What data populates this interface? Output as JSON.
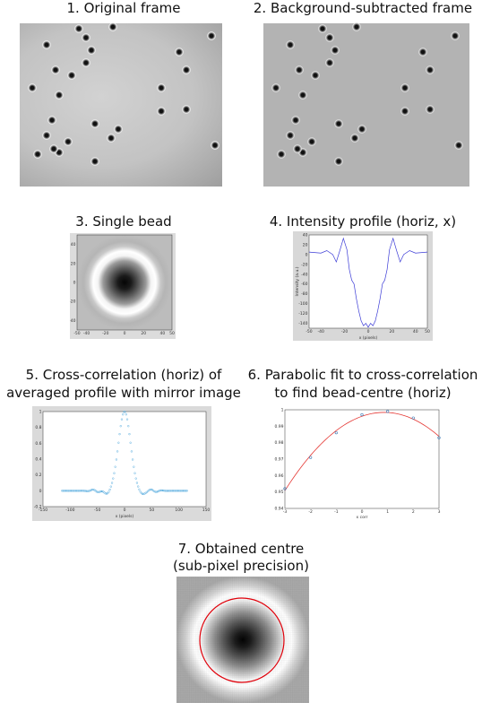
{
  "captions": {
    "p1": "1. Original frame",
    "p2": "2. Background-subtracted frame",
    "p3": "3. Single bead",
    "p4": "4. Intensity profile (horiz, x)",
    "p5_line1": "5. Cross-correlation (horiz) of",
    "p5_line2": "averaged profile with mirror image",
    "p6_line1": "6. Parabolic fit to cross-correlation",
    "p6_line2": "to find bead-centre (horiz)",
    "p7_line1": "7. Obtained centre",
    "p7_line2": "(sub-pixel precision)"
  },
  "colors": {
    "frame_bg": "#c4c4c4",
    "frame2_bg": "#b0b0b0",
    "bead_core": "#111111",
    "profile_line": "#3b3bd6",
    "xcorr_points": "#5aaee0",
    "fit_line": "#e53935",
    "fit_points": "#3a78b5",
    "centre_circle": "#e0000a"
  },
  "chart_data": [
    {
      "id": "single-bead",
      "type": "heatmap",
      "xlim": [
        -50,
        50
      ],
      "ylim": [
        -50,
        50
      ],
      "xticks": [
        "-50",
        "-40",
        "-20",
        "0",
        "20",
        "40",
        "50"
      ],
      "yticks": [
        "40",
        "20",
        "0",
        "-20",
        "-40"
      ]
    },
    {
      "id": "intensity-profile",
      "type": "line",
      "ylabel": "Intensity (a.u.)",
      "xlabel": "x (pixels)",
      "xlim": [
        -50,
        50
      ],
      "ylim": [
        -150,
        40
      ],
      "xticks": [
        "-50",
        "-40",
        "-20",
        "0",
        "20",
        "40",
        "50"
      ],
      "yticks": [
        "40",
        "20",
        "0",
        "-20",
        "-40",
        "-60",
        "-80",
        "-100",
        "-120",
        "-140"
      ],
      "x": [
        -50,
        -40,
        -35,
        -30,
        -27,
        -24,
        -21,
        -18,
        -16,
        -14,
        -12,
        -10,
        -8,
        -6,
        -4,
        -2,
        0,
        2,
        4,
        6,
        8,
        10,
        12,
        14,
        16,
        18,
        21,
        24,
        27,
        30,
        35,
        40,
        50
      ],
      "values": [
        5,
        3,
        8,
        0,
        -15,
        8,
        33,
        10,
        -30,
        -52,
        -60,
        -90,
        -115,
        -135,
        -145,
        -140,
        -148,
        -140,
        -145,
        -135,
        -115,
        -90,
        -60,
        -52,
        -30,
        10,
        33,
        8,
        -15,
        0,
        8,
        3,
        5
      ]
    },
    {
      "id": "cross-correlation",
      "type": "scatter",
      "xlabel": "x (pixels)",
      "xlim": [
        -150,
        150
      ],
      "ylim": [
        -0.2,
        1
      ],
      "xticks": [
        "-150",
        "-100",
        "-50",
        "0",
        "50",
        "100",
        "150"
      ],
      "yticks": [
        "1",
        "0.8",
        "0.6",
        "0.4",
        "0.2",
        "0",
        "-0.2"
      ]
    },
    {
      "id": "parabolic-fit",
      "type": "scatter",
      "xlabel": "x corr",
      "xlim": [
        -3,
        3
      ],
      "ylim": [
        0.94,
        1.0
      ],
      "xticks": [
        "-3",
        "-2",
        "-1",
        "0",
        "1",
        "2",
        "3"
      ],
      "yticks": [
        "1",
        "0.99",
        "0.98",
        "0.97",
        "0.96",
        "0.95",
        "0.94"
      ],
      "x": [
        -3,
        -2,
        -1,
        0,
        1,
        2,
        3
      ],
      "values": [
        0.952,
        0.971,
        0.986,
        0.997,
        0.999,
        0.995,
        0.983
      ]
    }
  ]
}
